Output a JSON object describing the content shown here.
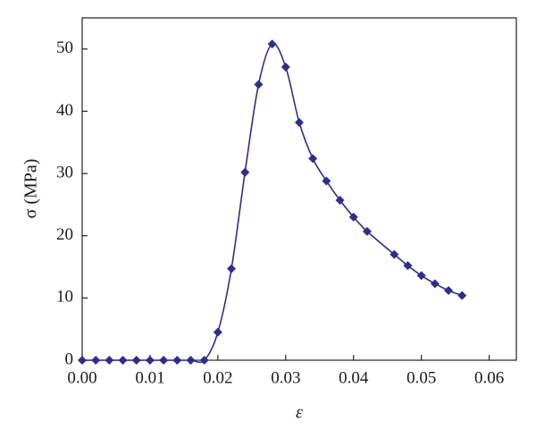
{
  "chart_data": {
    "type": "line",
    "x_label": "ε",
    "y_label": "σ (MPa)",
    "xlim": [
      0,
      0.064
    ],
    "ylim": [
      0,
      55
    ],
    "xticks": [
      {
        "value": 0,
        "label": "0.00"
      },
      0.01,
      0.02,
      0.03,
      0.04,
      0.05,
      0.06
    ],
    "yticks": [
      0,
      10,
      20,
      30,
      40,
      50
    ],
    "series": [
      {
        "color": "#2e2e8c",
        "marker": "diamond",
        "x": [
          0,
          0.002,
          0.004,
          0.006,
          0.008,
          0.01,
          0.012,
          0.014,
          0.016,
          0.018,
          0.02,
          0.022,
          0.024,
          0.026,
          0.028,
          0.03,
          0.032,
          0.034,
          0.036,
          0.038,
          0.04,
          0.042,
          0.046,
          0.048,
          0.05,
          0.052,
          0.054,
          0.056
        ],
        "values": [
          0,
          0,
          0,
          0,
          0,
          0,
          0,
          0,
          0,
          0,
          4.5,
          14.7,
          30.2,
          44.3,
          50.8,
          47.1,
          38.2,
          32.4,
          28.8,
          25.7,
          23.0,
          20.7,
          17.0,
          15.2,
          13.6,
          12.3,
          11.2,
          10.4
        ]
      }
    ]
  }
}
